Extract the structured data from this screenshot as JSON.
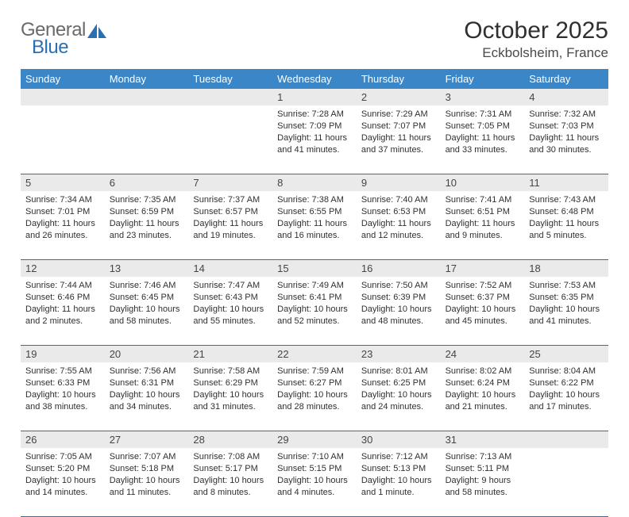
{
  "logo": {
    "general": "General",
    "blue": "Blue"
  },
  "title": {
    "month": "October 2025",
    "location": "Eckbolsheim, France"
  },
  "colors": {
    "header_bg": "#3b86c7",
    "header_text": "#ffffff",
    "rule": "#2a6fb0",
    "daynum_bg": "#eaeaea",
    "text": "#303030",
    "logo_gray": "#6a6a6a",
    "logo_blue": "#2a6fb0"
  },
  "dayHeaders": [
    "Sunday",
    "Monday",
    "Tuesday",
    "Wednesday",
    "Thursday",
    "Friday",
    "Saturday"
  ],
  "weeks": [
    [
      {
        "n": "",
        "sr": "",
        "ss": "",
        "dl1": "",
        "dl2": ""
      },
      {
        "n": "",
        "sr": "",
        "ss": "",
        "dl1": "",
        "dl2": ""
      },
      {
        "n": "",
        "sr": "",
        "ss": "",
        "dl1": "",
        "dl2": ""
      },
      {
        "n": "1",
        "sr": "Sunrise: 7:28 AM",
        "ss": "Sunset: 7:09 PM",
        "dl1": "Daylight: 11 hours",
        "dl2": "and 41 minutes."
      },
      {
        "n": "2",
        "sr": "Sunrise: 7:29 AM",
        "ss": "Sunset: 7:07 PM",
        "dl1": "Daylight: 11 hours",
        "dl2": "and 37 minutes."
      },
      {
        "n": "3",
        "sr": "Sunrise: 7:31 AM",
        "ss": "Sunset: 7:05 PM",
        "dl1": "Daylight: 11 hours",
        "dl2": "and 33 minutes."
      },
      {
        "n": "4",
        "sr": "Sunrise: 7:32 AM",
        "ss": "Sunset: 7:03 PM",
        "dl1": "Daylight: 11 hours",
        "dl2": "and 30 minutes."
      }
    ],
    [
      {
        "n": "5",
        "sr": "Sunrise: 7:34 AM",
        "ss": "Sunset: 7:01 PM",
        "dl1": "Daylight: 11 hours",
        "dl2": "and 26 minutes."
      },
      {
        "n": "6",
        "sr": "Sunrise: 7:35 AM",
        "ss": "Sunset: 6:59 PM",
        "dl1": "Daylight: 11 hours",
        "dl2": "and 23 minutes."
      },
      {
        "n": "7",
        "sr": "Sunrise: 7:37 AM",
        "ss": "Sunset: 6:57 PM",
        "dl1": "Daylight: 11 hours",
        "dl2": "and 19 minutes."
      },
      {
        "n": "8",
        "sr": "Sunrise: 7:38 AM",
        "ss": "Sunset: 6:55 PM",
        "dl1": "Daylight: 11 hours",
        "dl2": "and 16 minutes."
      },
      {
        "n": "9",
        "sr": "Sunrise: 7:40 AM",
        "ss": "Sunset: 6:53 PM",
        "dl1": "Daylight: 11 hours",
        "dl2": "and 12 minutes."
      },
      {
        "n": "10",
        "sr": "Sunrise: 7:41 AM",
        "ss": "Sunset: 6:51 PM",
        "dl1": "Daylight: 11 hours",
        "dl2": "and 9 minutes."
      },
      {
        "n": "11",
        "sr": "Sunrise: 7:43 AM",
        "ss": "Sunset: 6:48 PM",
        "dl1": "Daylight: 11 hours",
        "dl2": "and 5 minutes."
      }
    ],
    [
      {
        "n": "12",
        "sr": "Sunrise: 7:44 AM",
        "ss": "Sunset: 6:46 PM",
        "dl1": "Daylight: 11 hours",
        "dl2": "and 2 minutes."
      },
      {
        "n": "13",
        "sr": "Sunrise: 7:46 AM",
        "ss": "Sunset: 6:45 PM",
        "dl1": "Daylight: 10 hours",
        "dl2": "and 58 minutes."
      },
      {
        "n": "14",
        "sr": "Sunrise: 7:47 AM",
        "ss": "Sunset: 6:43 PM",
        "dl1": "Daylight: 10 hours",
        "dl2": "and 55 minutes."
      },
      {
        "n": "15",
        "sr": "Sunrise: 7:49 AM",
        "ss": "Sunset: 6:41 PM",
        "dl1": "Daylight: 10 hours",
        "dl2": "and 52 minutes."
      },
      {
        "n": "16",
        "sr": "Sunrise: 7:50 AM",
        "ss": "Sunset: 6:39 PM",
        "dl1": "Daylight: 10 hours",
        "dl2": "and 48 minutes."
      },
      {
        "n": "17",
        "sr": "Sunrise: 7:52 AM",
        "ss": "Sunset: 6:37 PM",
        "dl1": "Daylight: 10 hours",
        "dl2": "and 45 minutes."
      },
      {
        "n": "18",
        "sr": "Sunrise: 7:53 AM",
        "ss": "Sunset: 6:35 PM",
        "dl1": "Daylight: 10 hours",
        "dl2": "and 41 minutes."
      }
    ],
    [
      {
        "n": "19",
        "sr": "Sunrise: 7:55 AM",
        "ss": "Sunset: 6:33 PM",
        "dl1": "Daylight: 10 hours",
        "dl2": "and 38 minutes."
      },
      {
        "n": "20",
        "sr": "Sunrise: 7:56 AM",
        "ss": "Sunset: 6:31 PM",
        "dl1": "Daylight: 10 hours",
        "dl2": "and 34 minutes."
      },
      {
        "n": "21",
        "sr": "Sunrise: 7:58 AM",
        "ss": "Sunset: 6:29 PM",
        "dl1": "Daylight: 10 hours",
        "dl2": "and 31 minutes."
      },
      {
        "n": "22",
        "sr": "Sunrise: 7:59 AM",
        "ss": "Sunset: 6:27 PM",
        "dl1": "Daylight: 10 hours",
        "dl2": "and 28 minutes."
      },
      {
        "n": "23",
        "sr": "Sunrise: 8:01 AM",
        "ss": "Sunset: 6:25 PM",
        "dl1": "Daylight: 10 hours",
        "dl2": "and 24 minutes."
      },
      {
        "n": "24",
        "sr": "Sunrise: 8:02 AM",
        "ss": "Sunset: 6:24 PM",
        "dl1": "Daylight: 10 hours",
        "dl2": "and 21 minutes."
      },
      {
        "n": "25",
        "sr": "Sunrise: 8:04 AM",
        "ss": "Sunset: 6:22 PM",
        "dl1": "Daylight: 10 hours",
        "dl2": "and 17 minutes."
      }
    ],
    [
      {
        "n": "26",
        "sr": "Sunrise: 7:05 AM",
        "ss": "Sunset: 5:20 PM",
        "dl1": "Daylight: 10 hours",
        "dl2": "and 14 minutes."
      },
      {
        "n": "27",
        "sr": "Sunrise: 7:07 AM",
        "ss": "Sunset: 5:18 PM",
        "dl1": "Daylight: 10 hours",
        "dl2": "and 11 minutes."
      },
      {
        "n": "28",
        "sr": "Sunrise: 7:08 AM",
        "ss": "Sunset: 5:17 PM",
        "dl1": "Daylight: 10 hours",
        "dl2": "and 8 minutes."
      },
      {
        "n": "29",
        "sr": "Sunrise: 7:10 AM",
        "ss": "Sunset: 5:15 PM",
        "dl1": "Daylight: 10 hours",
        "dl2": "and 4 minutes."
      },
      {
        "n": "30",
        "sr": "Sunrise: 7:12 AM",
        "ss": "Sunset: 5:13 PM",
        "dl1": "Daylight: 10 hours",
        "dl2": "and 1 minute."
      },
      {
        "n": "31",
        "sr": "Sunrise: 7:13 AM",
        "ss": "Sunset: 5:11 PM",
        "dl1": "Daylight: 9 hours",
        "dl2": "and 58 minutes."
      },
      {
        "n": "",
        "sr": "",
        "ss": "",
        "dl1": "",
        "dl2": ""
      }
    ]
  ]
}
